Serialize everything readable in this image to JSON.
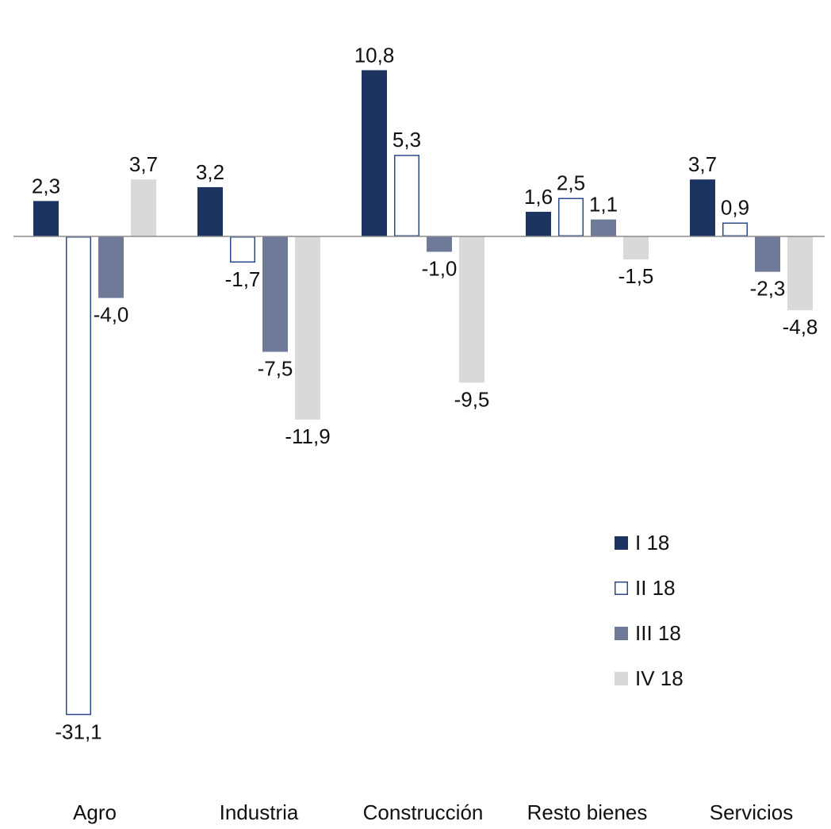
{
  "chart_data": {
    "type": "bar",
    "categories": [
      "Agro",
      "Industria",
      "Construcción",
      "Resto bienes",
      "Servicios"
    ],
    "series": [
      {
        "name": "I 18",
        "color": "#1b3460",
        "fill": "#1b3460",
        "stroke": "#1b3460",
        "values": [
          2.3,
          3.2,
          10.8,
          1.6,
          3.7
        ],
        "labels": [
          "2,3",
          "3,2",
          "10,8",
          "1,6",
          "3,7"
        ]
      },
      {
        "name": "II 18",
        "color": "#1b3460",
        "fill": "#ffffff",
        "stroke": "#2a4a8a",
        "values": [
          -31.1,
          -1.7,
          5.3,
          2.5,
          0.9
        ],
        "labels": [
          "-31,1",
          "-1,7",
          "5,3",
          "2,5",
          "0,9"
        ]
      },
      {
        "name": "III 18",
        "color": "#6e7a98",
        "fill": "#6e7a98",
        "stroke": "#6e7a98",
        "values": [
          -4.0,
          -7.5,
          -1.0,
          1.1,
          -2.3
        ],
        "labels": [
          "-4,0",
          "-7,5",
          "-1,0",
          "1,1",
          "-2,3"
        ]
      },
      {
        "name": "IV 18",
        "color": "#d9d9d9",
        "fill": "#d9d9d9",
        "stroke": "#d9d9d9",
        "values": [
          3.7,
          -11.9,
          -9.5,
          -1.5,
          -4.8
        ],
        "labels": [
          "3,7",
          "-11,9",
          "-9,5",
          "-1,5",
          "-4,8"
        ]
      }
    ],
    "title": "",
    "xlabel": "",
    "ylabel": "",
    "ylim": [
      -31.1,
      10.8
    ],
    "grid": false,
    "legend_position": "bottom-right",
    "decimal_separator": ","
  }
}
